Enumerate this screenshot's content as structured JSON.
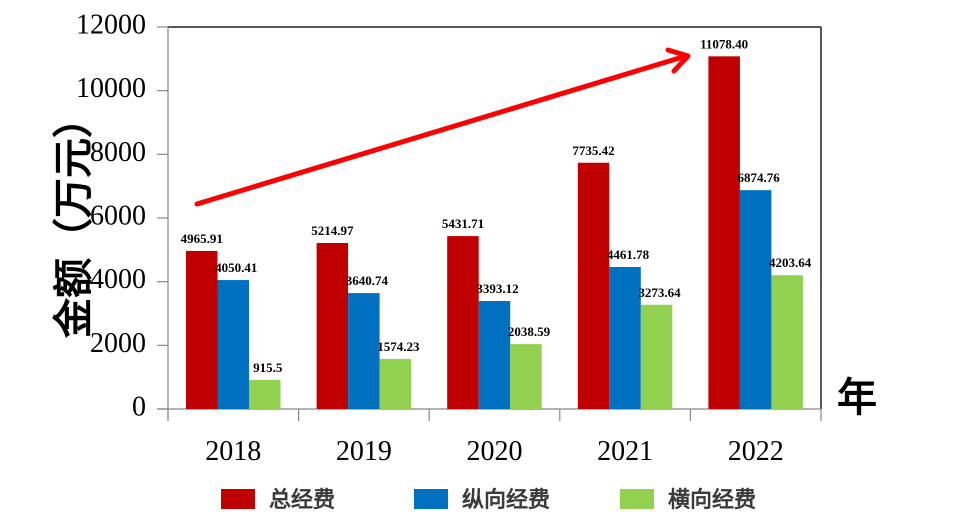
{
  "chart_data": {
    "type": "bar",
    "title": "",
    "xlabel": "年",
    "ylabel": "金额（万元）",
    "ylim": [
      0,
      12000
    ],
    "yticks": [
      0,
      2000,
      4000,
      6000,
      8000,
      10000,
      12000
    ],
    "ytick_labels": [
      "0",
      "2000",
      "4000",
      "6000",
      "8000",
      "10000",
      "12000"
    ],
    "categories": [
      "2018",
      "2019",
      "2020",
      "2021",
      "2022"
    ],
    "series": [
      {
        "name": "总经费",
        "color": "#c00000",
        "values": [
          4965.91,
          5214.97,
          5431.71,
          7735.42,
          11078.4
        ],
        "labels": [
          "4965.91",
          "5214.97",
          "5431.71",
          "7735.42",
          "11078.40"
        ]
      },
      {
        "name": "纵向经费",
        "color": "#0070c0",
        "values": [
          4050.41,
          3640.74,
          3393.12,
          4461.78,
          6874.76
        ],
        "labels": [
          "4050.41",
          "3640.74",
          "3393.12",
          "4461.78",
          "6874.76"
        ]
      },
      {
        "name": "横向经费",
        "color": "#92d050",
        "values": [
          915.5,
          1574.23,
          2038.59,
          3273.64,
          4203.64
        ],
        "labels": [
          "915.5",
          "1574.23",
          "2038.59",
          "3273.64",
          "4203.64"
        ]
      }
    ],
    "legend_position": "bottom",
    "grid": false,
    "annotations": [
      {
        "type": "trend-arrow",
        "color": "#ff0000",
        "direction": "upward",
        "description": "upward trend arrow over bars from 2018 to 2022"
      }
    ]
  }
}
